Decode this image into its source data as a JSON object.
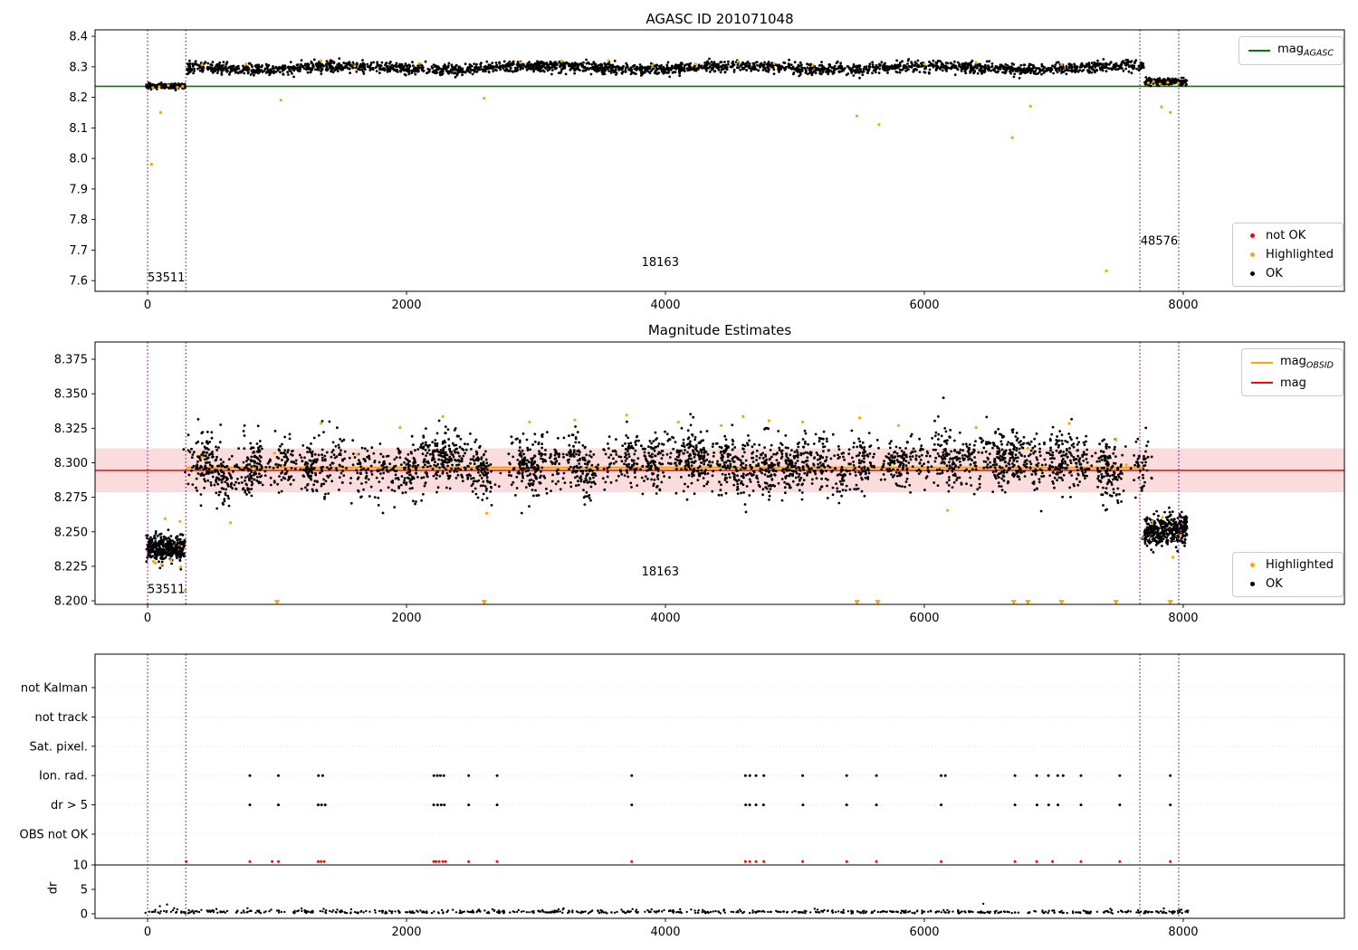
{
  "figure": {
    "background": "#ffffff"
  },
  "colors": {
    "ok": "#000000",
    "highlighted": "#ffa500",
    "not_ok": "#ff0000",
    "mag_agasc_line": "#008000",
    "mag_line": "#ff0000",
    "mag_obsid_line": "#ffa500",
    "band": "#fbdcdc",
    "vline": "#800080",
    "grid": "#d8d8d8"
  },
  "labels": {
    "dr_axis": "dr"
  },
  "chart_data": [
    {
      "type": "scatter",
      "title": "AGASC ID 201071048",
      "xlim": [
        -406,
        9245
      ],
      "ylim": [
        7.565,
        8.421
      ],
      "xtick_values": [
        0,
        2000,
        4000,
        6000,
        8000
      ],
      "xtick_labels": [
        "0",
        "2000",
        "4000",
        "6000",
        "8000"
      ],
      "ytick_values": [
        7.6,
        7.7,
        7.8,
        7.9,
        8.0,
        8.1,
        8.2,
        8.3,
        8.4
      ],
      "ytick_labels": [
        "7.6",
        "7.7",
        "7.8",
        "7.9",
        "8.0",
        "8.1",
        "8.2",
        "8.3",
        "8.4"
      ],
      "grid": false,
      "hlines": [
        {
          "y": 8.236,
          "color": "#008000",
          "width": 1.6,
          "name": "mag-agasc-line"
        }
      ],
      "vlines": {
        "x": [
          0,
          295,
          7665,
          7965
        ]
      },
      "legend_top_right": [
        {
          "type": "line",
          "color": "#008000",
          "label": "mag",
          "sub": "AGASC"
        }
      ],
      "legend_mid_right": [
        {
          "type": "dot",
          "color": "#ff0000",
          "label": "not OK"
        },
        {
          "type": "dot",
          "color": "#ffa500",
          "label": "Highlighted"
        },
        {
          "type": "dot",
          "color": "#000000",
          "label": "OK"
        }
      ],
      "annotations": [
        {
          "text": "53511",
          "x": 0,
          "y": 7.598,
          "anchor": "start"
        },
        {
          "text": "18163",
          "x": 3960,
          "y": 7.648,
          "anchor": "middle"
        },
        {
          "text": "48576",
          "x": 7670,
          "y": 7.718,
          "anchor": "start"
        }
      ],
      "ok_clusters": [
        {
          "x0": -10,
          "x1": 292,
          "n": 160,
          "mean": 8.237,
          "sigma": 0.0045,
          "seed": 11
        },
        {
          "x0": 300,
          "x1": 7695,
          "n": 2500,
          "mean": 8.297,
          "sigma": 0.009,
          "wave_amp": 0.006,
          "wave_period": 1500,
          "seed": 12
        },
        {
          "x0": 7700,
          "x1": 8030,
          "n": 170,
          "mean": 8.251,
          "sigma": 0.0055,
          "seed": 13
        }
      ],
      "highlighted": [
        [
          30,
          7.981
        ],
        [
          100,
          8.151
        ],
        [
          40,
          8.232
        ],
        [
          90,
          8.235
        ],
        [
          160,
          8.239
        ],
        [
          230,
          8.233
        ],
        [
          270,
          8.236
        ],
        [
          420,
          8.306
        ],
        [
          760,
          8.309
        ],
        [
          1030,
          8.191
        ],
        [
          1340,
          8.319
        ],
        [
          1600,
          8.303
        ],
        [
          2100,
          8.311
        ],
        [
          2600,
          8.197
        ],
        [
          2880,
          8.314
        ],
        [
          3200,
          8.319
        ],
        [
          3560,
          8.321
        ],
        [
          3900,
          8.305
        ],
        [
          4230,
          8.309
        ],
        [
          4560,
          8.317
        ],
        [
          4840,
          8.311
        ],
        [
          5140,
          8.306
        ],
        [
          5480,
          8.139
        ],
        [
          5650,
          8.111
        ],
        [
          6000,
          8.309
        ],
        [
          6400,
          8.314
        ],
        [
          6680,
          8.068
        ],
        [
          6820,
          8.171
        ],
        [
          7060,
          8.308
        ],
        [
          7406,
          7.632
        ],
        [
          7832,
          8.169
        ],
        [
          7900,
          8.151
        ],
        [
          7730,
          8.247
        ],
        [
          7770,
          8.252
        ],
        [
          7820,
          8.244
        ],
        [
          7880,
          8.249
        ],
        [
          7960,
          8.246
        ]
      ]
    },
    {
      "type": "scatter",
      "title": "Magnitude Estimates",
      "xlim": [
        -406,
        9245
      ],
      "ylim": [
        8.1974,
        8.3875
      ],
      "xtick_values": [
        0,
        2000,
        4000,
        6000,
        8000
      ],
      "xtick_labels": [
        "0",
        "2000",
        "4000",
        "6000",
        "8000"
      ],
      "ytick_values": [
        8.2,
        8.225,
        8.25,
        8.275,
        8.3,
        8.325,
        8.35,
        8.375
      ],
      "ytick_labels": [
        "8.200",
        "8.225",
        "8.250",
        "8.275",
        "8.300",
        "8.325",
        "8.350",
        "8.375"
      ],
      "grid": false,
      "band": {
        "y0": 8.2785,
        "y1": 8.3105,
        "color": "#fbdcdc"
      },
      "obsid_segments": [
        {
          "x0": -10,
          "x1": 292,
          "y": 8.2405
        },
        {
          "x0": 300,
          "x1": 7695,
          "y": 8.2965
        },
        {
          "x0": 7700,
          "x1": 8030,
          "y": 8.2525
        }
      ],
      "hlines": [
        {
          "y": 8.2945,
          "color": "#ff0000",
          "width": 1.6,
          "name": "mag-line"
        }
      ],
      "vlines": {
        "x": [
          0,
          295,
          7665,
          7965
        ]
      },
      "legend_top_right": [
        {
          "type": "line",
          "color": "#ffa500",
          "label": "mag",
          "sub": "OBSID"
        },
        {
          "type": "line",
          "color": "#ff0000",
          "label": "mag",
          "sub": ""
        }
      ],
      "legend_bot_right": [
        {
          "type": "dot",
          "color": "#ffa500",
          "label": "Highlighted"
        },
        {
          "type": "dot",
          "color": "#000000",
          "label": "OK"
        }
      ],
      "annotations": [
        {
          "text": "53511",
          "x": 0,
          "y": 8.2055,
          "anchor": "start"
        },
        {
          "text": "18163",
          "x": 3960,
          "y": 8.2185,
          "anchor": "middle"
        },
        {
          "text": "48576",
          "x": 7670,
          "y": 8.2425,
          "anchor": "start"
        }
      ],
      "ok_clusters": [
        {
          "x0": -10,
          "x1": 292,
          "n": 360,
          "mean": 8.2385,
          "sigma": 0.0045,
          "seed": 21
        },
        {
          "x0": 300,
          "x1": 7695,
          "n": 3200,
          "mean": 8.2985,
          "sigma": 0.01,
          "clumps": 58,
          "seed": 22
        },
        {
          "x0": 7700,
          "x1": 8030,
          "n": 340,
          "mean": 8.2515,
          "sigma": 0.0055,
          "seed": 23
        }
      ],
      "highlighted": [
        [
          60,
          8.2275
        ],
        [
          135,
          8.2595
        ],
        [
          250,
          8.2575
        ],
        [
          292,
          8.2075
        ],
        [
          420,
          8.304
        ],
        [
          640,
          8.2565
        ],
        [
          980,
          8.307
        ],
        [
          1340,
          8.3285
        ],
        [
          1620,
          8.306
        ],
        [
          1950,
          8.3255
        ],
        [
          2280,
          8.3335
        ],
        [
          2620,
          8.2635
        ],
        [
          2950,
          8.3295
        ],
        [
          3300,
          8.331
        ],
        [
          3700,
          8.3345
        ],
        [
          4100,
          8.3295
        ],
        [
          4430,
          8.327
        ],
        [
          4600,
          8.3335
        ],
        [
          4800,
          8.3305
        ],
        [
          5060,
          8.3295
        ],
        [
          5500,
          8.3325
        ],
        [
          5800,
          8.327
        ],
        [
          6180,
          8.2655
        ],
        [
          6400,
          8.3255
        ],
        [
          6800,
          8.3105
        ],
        [
          7120,
          8.3285
        ],
        [
          7480,
          8.3165
        ],
        [
          7560,
          8.2985
        ],
        [
          7760,
          8.2575
        ],
        [
          7840,
          8.2605
        ],
        [
          7920,
          8.2315
        ],
        [
          7980,
          8.2475
        ],
        [
          45,
          8.2285
        ],
        [
          110,
          8.2265
        ],
        [
          180,
          8.2295
        ],
        [
          255,
          8.2245
        ]
      ],
      "clipped_low": {
        "y": 8.1988,
        "x": [
          1000,
          2600,
          5480,
          5640,
          6690,
          6800,
          7060,
          7480,
          7900
        ]
      }
    },
    {
      "type": "flags",
      "categories": [
        "not Kalman",
        "not track",
        "Sat. pixel.",
        "Ion. rad.",
        "dr > 5",
        "OBS not OK"
      ],
      "ylabel": "dr",
      "xlim": [
        -406,
        9245
      ],
      "xtick_values": [
        0,
        2000,
        4000,
        6000,
        8000
      ],
      "xtick_labels": [
        "0",
        "2000",
        "4000",
        "6000",
        "8000"
      ],
      "dr_tick_values": [
        0,
        5,
        10
      ],
      "dr_tick_labels": [
        "0",
        "5",
        "10"
      ],
      "threshold_line_dr": 10,
      "vlines": {
        "x": [
          0,
          295,
          7665,
          7965
        ]
      },
      "flags": {
        "ion_rad_x": [
          790,
          1010,
          1320,
          1352,
          2212,
          2238,
          2262,
          2288,
          2480,
          2700,
          3740,
          4618,
          4652,
          4700,
          4760,
          5060,
          5400,
          5630,
          6130,
          6162,
          6700,
          6868,
          6958,
          7030,
          7072,
          7210,
          7510,
          7900
        ],
        "dr_gt5_x": [
          790,
          1010,
          1318,
          1344,
          1372,
          2210,
          2240,
          2268,
          2292,
          2480,
          2700,
          3740,
          4620,
          4650,
          4700,
          4758,
          5062,
          5400,
          5630,
          6130,
          6700,
          6870,
          6960,
          7032,
          7210,
          7510,
          7900
        ],
        "dr10_red_x": [
          298,
          790,
          962,
          1010,
          1318,
          1340,
          1364,
          2210,
          2228,
          2252,
          2280,
          2302,
          2480,
          2700,
          3740,
          4618,
          4652,
          4700,
          4760,
          5060,
          5400,
          5630,
          6130,
          6700,
          6868,
          6990,
          7210,
          7510,
          7900
        ]
      },
      "dr_series": {
        "n": 650,
        "x0": -20,
        "x1": 8060,
        "base": 0.05,
        "uniform": 0.35,
        "sigma": 0.25,
        "seed": 31,
        "extras": [
          [
            95,
            1.55
          ],
          [
            150,
            1.9
          ],
          [
            205,
            1.15
          ],
          [
            230,
            0.9
          ],
          [
            6455,
            2.05
          ],
          [
            1360,
            1.0
          ],
          [
            7850,
            1.1
          ]
        ]
      }
    }
  ]
}
